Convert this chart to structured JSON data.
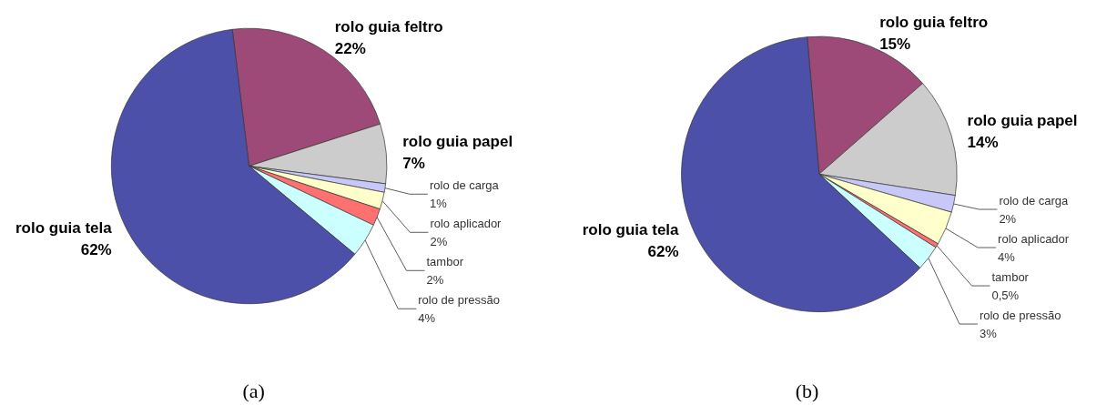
{
  "chart_data": [
    {
      "type": "pie",
      "title": "(a)",
      "categories": [
        "rolo guia feltro",
        "rolo guia papel",
        "rolo de carga",
        "rolo aplicador",
        "tambor",
        "rolo de pressão",
        "rolo guia tela"
      ],
      "values": [
        22,
        7,
        1,
        2,
        2,
        4,
        62
      ],
      "value_labels": [
        "22%",
        "7%",
        "1%",
        "2%",
        "2%",
        "4%",
        "62%"
      ],
      "colors": [
        "#9e4a78",
        "#cccccc",
        "#c8c8f8",
        "#ffffcc",
        "#ff7070",
        "#ccffff",
        "#4c50a8"
      ]
    },
    {
      "type": "pie",
      "title": "(b)",
      "categories": [
        "rolo guia feltro",
        "rolo guia papel",
        "rolo de carga",
        "rolo aplicador",
        "tambor",
        "rolo de pressão",
        "rolo guia tela"
      ],
      "values": [
        15,
        14,
        2,
        4,
        0.5,
        3,
        62
      ],
      "value_labels": [
        "15%",
        "14%",
        "2%",
        "4%",
        "0,5%",
        "3%",
        "62%"
      ],
      "colors": [
        "#9e4a78",
        "#cccccc",
        "#c8c8f8",
        "#ffffcc",
        "#ff7070",
        "#ccffff",
        "#4c50a8"
      ]
    }
  ]
}
